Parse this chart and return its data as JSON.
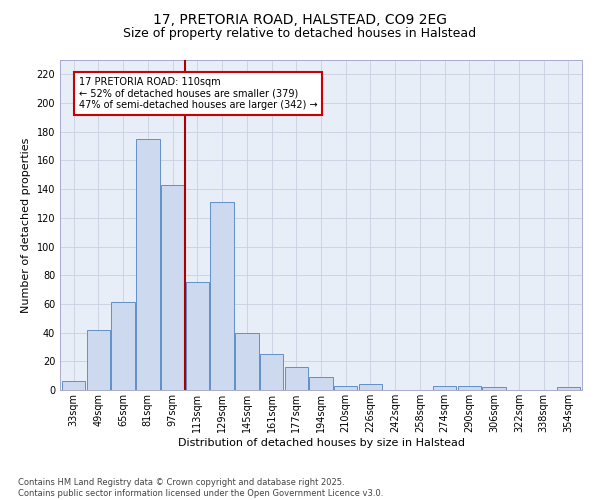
{
  "title": "17, PRETORIA ROAD, HALSTEAD, CO9 2EG",
  "subtitle": "Size of property relative to detached houses in Halstead",
  "xlabel": "Distribution of detached houses by size in Halstead",
  "ylabel": "Number of detached properties",
  "bar_color": "#cdd9ef",
  "bar_edge_color": "#6090c8",
  "background_color": "#e8eef8",
  "grid_color": "#c8d0e0",
  "annotation_line1": "17 PRETORIA ROAD: 110sqm",
  "annotation_line2": "← 52% of detached houses are smaller (379)",
  "annotation_line3": "47% of semi-detached houses are larger (342) →",
  "annotation_box_color": "#ffffff",
  "annotation_box_edge": "#cc0000",
  "vline_color": "#aa0000",
  "categories": [
    "33sqm",
    "49sqm",
    "65sqm",
    "81sqm",
    "97sqm",
    "113sqm",
    "129sqm",
    "145sqm",
    "161sqm",
    "177sqm",
    "194sqm",
    "210sqm",
    "226sqm",
    "242sqm",
    "258sqm",
    "274sqm",
    "290sqm",
    "306sqm",
    "322sqm",
    "338sqm",
    "354sqm"
  ],
  "values": [
    6,
    42,
    61,
    175,
    143,
    75,
    131,
    40,
    25,
    16,
    9,
    3,
    4,
    0,
    0,
    3,
    3,
    2,
    0,
    0,
    2
  ],
  "vline_index": 5,
  "ylim": [
    0,
    230
  ],
  "yticks": [
    0,
    20,
    40,
    60,
    80,
    100,
    120,
    140,
    160,
    180,
    200,
    220
  ],
  "footer": "Contains HM Land Registry data © Crown copyright and database right 2025.\nContains public sector information licensed under the Open Government Licence v3.0.",
  "title_fontsize": 10,
  "subtitle_fontsize": 9,
  "xlabel_fontsize": 8,
  "ylabel_fontsize": 8,
  "tick_fontsize": 7,
  "footer_fontsize": 6
}
